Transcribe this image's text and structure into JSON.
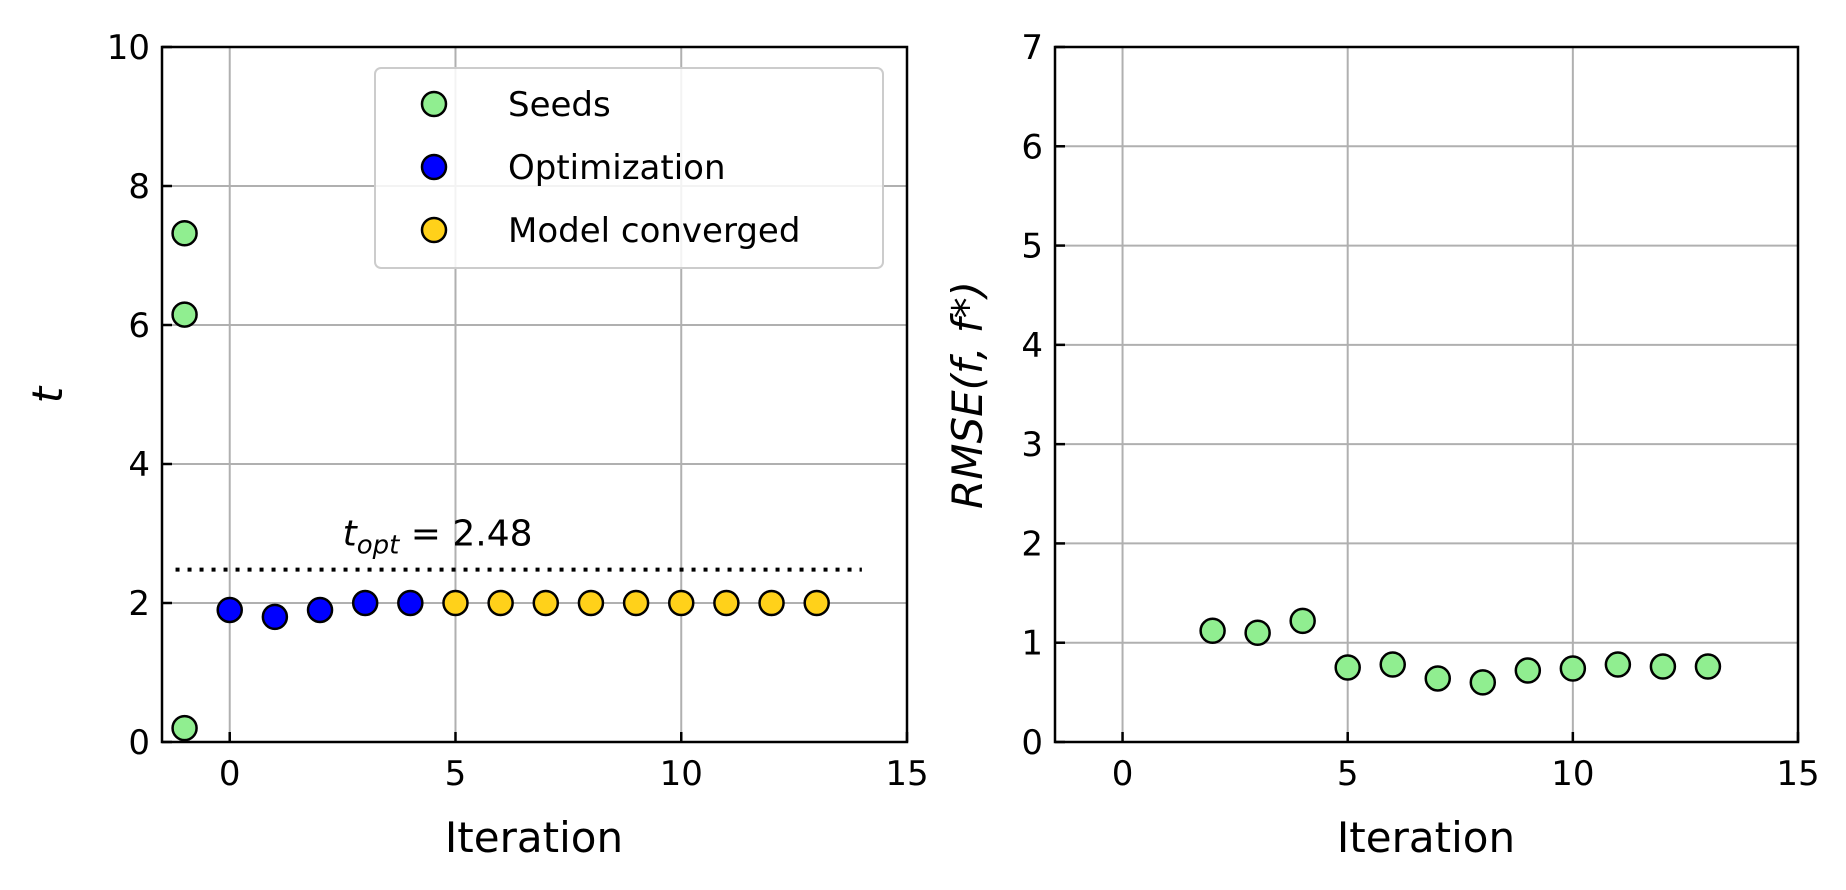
{
  "chart_data": [
    {
      "type": "scatter",
      "xlabel": "Iteration",
      "ylabel": "t",
      "xlim": [
        -1.5,
        15
      ],
      "ylim": [
        0,
        10
      ],
      "xticks": [
        "0",
        "5",
        "10",
        "15"
      ],
      "yticks": [
        "0",
        "2",
        "4",
        "6",
        "8",
        "10"
      ],
      "grid": true,
      "legend_position": "top-right",
      "series": [
        {
          "name": "Seeds",
          "color": "#90ee90",
          "points": [
            [
              -1,
              7.32
            ],
            [
              -1,
              6.15
            ],
            [
              -1,
              0.2
            ]
          ]
        },
        {
          "name": "Optimization",
          "color": "#0000ff",
          "points": [
            [
              0,
              1.9
            ],
            [
              1,
              1.8
            ],
            [
              2,
              1.9
            ],
            [
              3,
              2.0
            ],
            [
              4,
              2.0
            ]
          ]
        },
        {
          "name": "Model converged",
          "color": "#ffd11a",
          "points": [
            [
              5,
              2.0
            ],
            [
              6,
              2.0
            ],
            [
              7,
              2.0
            ],
            [
              8,
              2.0
            ],
            [
              9,
              2.0
            ],
            [
              10,
              2.0
            ],
            [
              11,
              2.0
            ],
            [
              12,
              2.0
            ],
            [
              13,
              2.0
            ]
          ]
        }
      ],
      "reference_line": {
        "y": 2.48,
        "x_range": [
          -1.2,
          14
        ],
        "style": "dotted"
      },
      "annotation": {
        "prefix": "t",
        "subscript": "opt",
        "text": " = 2.48",
        "x": 2.5,
        "y": 3.0
      }
    },
    {
      "type": "scatter",
      "xlabel": "Iteration",
      "ylabel": "RMSE(f, f*)",
      "xlim": [
        -1.5,
        15
      ],
      "ylim": [
        0,
        7
      ],
      "xticks": [
        "0",
        "5",
        "10",
        "15"
      ],
      "yticks": [
        "0",
        "1",
        "2",
        "3",
        "4",
        "5",
        "6",
        "7"
      ],
      "grid": true,
      "series": [
        {
          "color": "#90ee90",
          "points": [
            [
              2,
              1.12
            ],
            [
              3,
              1.1
            ],
            [
              4,
              1.22
            ],
            [
              5,
              0.75
            ],
            [
              6,
              0.78
            ],
            [
              7,
              0.64
            ],
            [
              8,
              0.6
            ],
            [
              9,
              0.72
            ],
            [
              10,
              0.74
            ],
            [
              11,
              0.78
            ],
            [
              12,
              0.76
            ],
            [
              13,
              0.76
            ]
          ]
        }
      ]
    }
  ]
}
